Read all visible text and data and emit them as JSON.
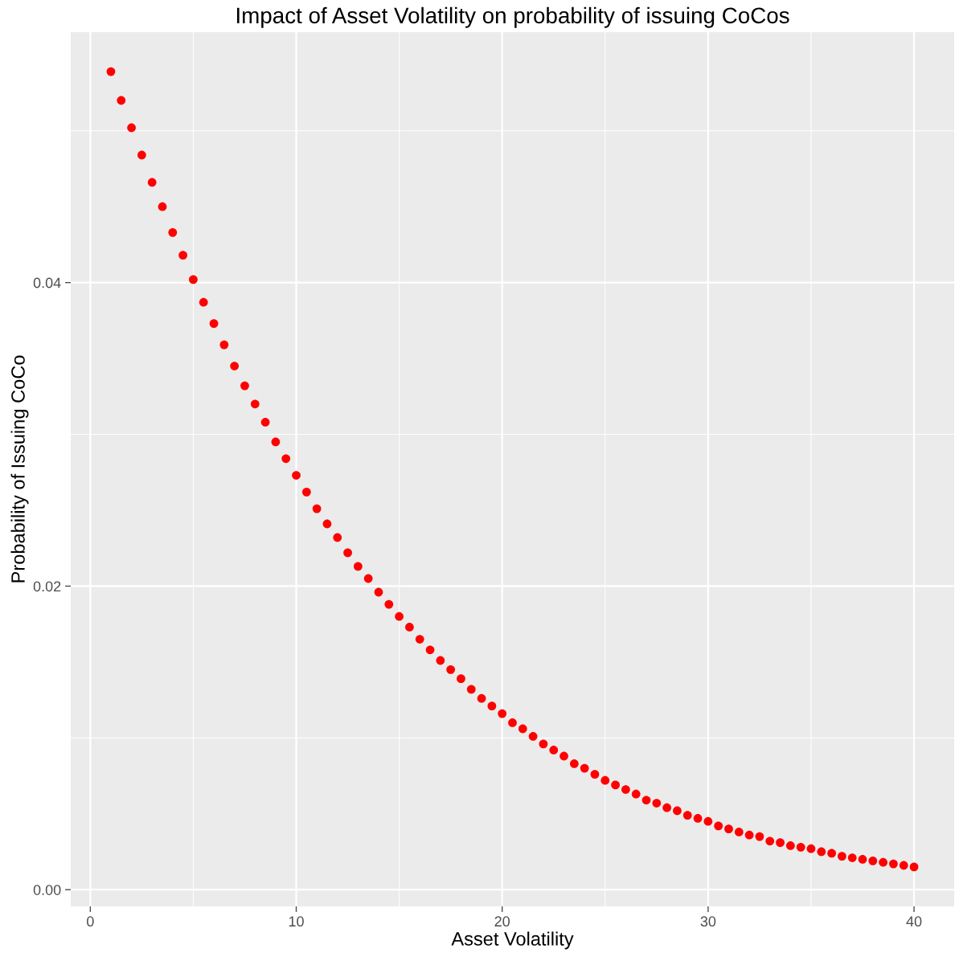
{
  "chart_data": {
    "type": "scatter",
    "title": "Impact of Asset Volatility on probability of issuing CoCos",
    "xlabel": "Asset Volatility",
    "ylabel": "Probability of Issuing CoCo",
    "x": [
      1,
      1.5,
      2,
      2.5,
      3,
      3.5,
      4,
      4.5,
      5,
      5.5,
      6,
      6.5,
      7,
      7.5,
      8,
      8.5,
      9,
      9.5,
      10,
      10.5,
      11,
      11.5,
      12,
      12.5,
      13,
      13.5,
      14,
      14.5,
      15,
      15.5,
      16,
      16.5,
      17,
      17.5,
      18,
      18.5,
      19,
      19.5,
      20,
      20.5,
      21,
      21.5,
      22,
      22.5,
      23,
      23.5,
      24,
      24.5,
      25,
      25.5,
      26,
      26.5,
      27,
      27.5,
      28,
      28.5,
      29,
      29.5,
      30,
      30.5,
      31,
      31.5,
      32,
      32.5,
      33,
      33.5,
      34,
      34.5,
      35,
      35.5,
      36,
      36.5,
      37,
      37.5,
      38,
      38.5,
      39,
      39.5,
      40
    ],
    "series": [
      {
        "color": "#ff0000",
        "values": [
          0.0539,
          0.052,
          0.0502,
          0.0484,
          0.0466,
          0.045,
          0.0433,
          0.0418,
          0.0402,
          0.0387,
          0.0373,
          0.0359,
          0.0345,
          0.0332,
          0.032,
          0.0308,
          0.0295,
          0.0284,
          0.0273,
          0.0262,
          0.0251,
          0.0241,
          0.0232,
          0.0222,
          0.0213,
          0.0205,
          0.0196,
          0.0188,
          0.018,
          0.0173,
          0.0165,
          0.0158,
          0.0151,
          0.0145,
          0.0139,
          0.0132,
          0.0126,
          0.0121,
          0.0116,
          0.011,
          0.0106,
          0.0101,
          0.0096,
          0.0092,
          0.0088,
          0.0083,
          0.008,
          0.0076,
          0.0072,
          0.0069,
          0.0066,
          0.0063,
          0.0059,
          0.0057,
          0.0054,
          0.0052,
          0.0049,
          0.0047,
          0.0045,
          0.0042,
          0.004,
          0.0038,
          0.0036,
          0.0035,
          0.0032,
          0.0031,
          0.0029,
          0.0028,
          0.0027,
          0.0025,
          0.0024,
          0.0022,
          0.0021,
          0.002,
          0.0019,
          0.0018,
          0.0017,
          0.0016,
          0.0015
        ]
      }
    ],
    "xlim": [
      -0.95,
      41.95
    ],
    "xticks": [
      0,
      10,
      20,
      30,
      40
    ],
    "ylim": [
      -0.0011,
      0.0565
    ],
    "yticks": [
      {
        "value": 0,
        "label": "0.00"
      },
      {
        "value": 0.02,
        "label": "0.02"
      },
      {
        "value": 0.04,
        "label": "0.04"
      }
    ],
    "grid": true,
    "marker": "circle"
  }
}
